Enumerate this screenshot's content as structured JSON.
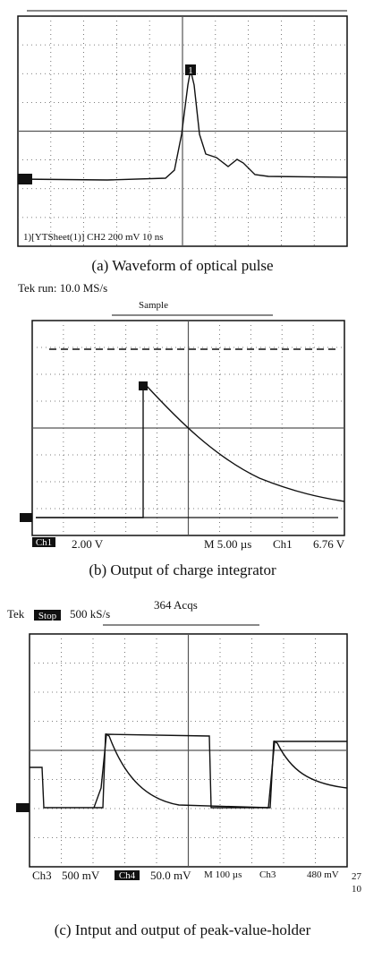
{
  "panels": [
    {
      "marker": "1",
      "readout": "1)[YTSheet(1)] CH2 200 mV 10 ns",
      "caption": "(a) Waveform of optical pulse"
    },
    {
      "header": "Tek run: 10.0 MS/s",
      "mode": "Sample",
      "channel": "Ch1",
      "volts": "2.00 V",
      "timebase": "M 5.00 µs",
      "trigger_channel": "Ch1",
      "trigger_level": "6.76 V",
      "caption": "(b) Output of charge integrator"
    },
    {
      "brand": "Tek",
      "state": "Stop",
      "rate": "500 kS/s",
      "acqs": "364 Acqs",
      "ch3": "Ch3",
      "ch3_volts": "500 mV",
      "ch4": "Ch4",
      "ch4_volts": "50.0 mV",
      "timebase": "M 100 µs",
      "trigger_channel": "Ch3",
      "trigger_level": "480 mV",
      "corner_top": "27",
      "corner_bottom": "10",
      "caption": "(c) Intput and output of peak-value-holder"
    }
  ]
}
